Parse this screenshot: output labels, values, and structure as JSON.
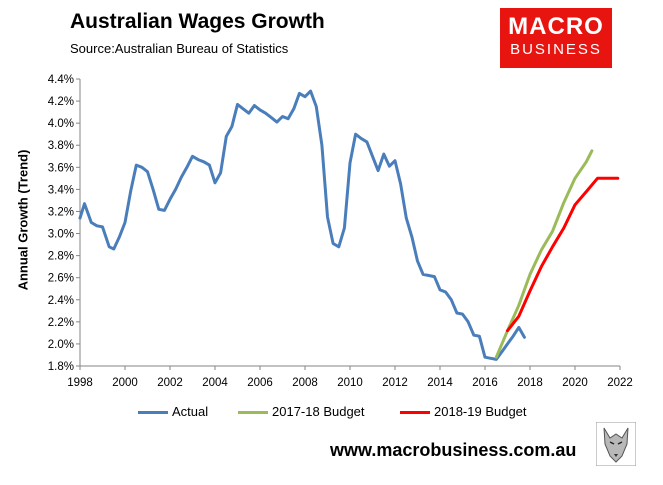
{
  "header": {
    "title": "Australian Wages Growth",
    "source": "Source:Australian Bureau of Statistics"
  },
  "logo": {
    "line1": "MACRO",
    "line2": "BUSINESS"
  },
  "footer": {
    "url": "www.macrobusiness.com.au"
  },
  "colors": {
    "actual": "#4a7ebb",
    "budget_2017": "#9bbb59",
    "budget_2018": "#ff0000",
    "logo_bg": "#e8140f"
  },
  "chart_data": {
    "type": "line",
    "ylabel": "Annual Growth (Trend)",
    "xlim": [
      1998,
      2022
    ],
    "ylim": [
      1.8,
      4.4
    ],
    "x_ticks": [
      1998,
      2000,
      2002,
      2004,
      2006,
      2008,
      2010,
      2012,
      2014,
      2016,
      2018,
      2020,
      2022
    ],
    "y_ticks": [
      1.8,
      2.0,
      2.2,
      2.4,
      2.6,
      2.8,
      3.0,
      3.2,
      3.4,
      3.6,
      3.8,
      4.0,
      4.2,
      4.4
    ],
    "y_tick_labels": [
      "1.8%",
      "2.0%",
      "2.2%",
      "2.4%",
      "2.6%",
      "2.8%",
      "3.0%",
      "3.2%",
      "3.4%",
      "3.6%",
      "3.8%",
      "4.0%",
      "4.2%",
      "4.4%"
    ],
    "grid": false,
    "legend_position": "bottom",
    "series": [
      {
        "name": "Actual",
        "color": "#4a7ebb",
        "x": [
          1998.0,
          1998.2,
          1998.5,
          1998.75,
          1999.0,
          1999.3,
          1999.5,
          1999.75,
          2000.0,
          2000.25,
          2000.5,
          2000.75,
          2001.0,
          2001.25,
          2001.5,
          2001.75,
          2002.0,
          2002.25,
          2002.5,
          2002.75,
          2003.0,
          2003.25,
          2003.5,
          2003.75,
          2004.0,
          2004.25,
          2004.5,
          2004.75,
          2005.0,
          2005.25,
          2005.5,
          2005.75,
          2006.0,
          2006.25,
          2006.5,
          2006.75,
          2007.0,
          2007.25,
          2007.5,
          2007.75,
          2008.0,
          2008.25,
          2008.5,
          2008.75,
          2009.0,
          2009.25,
          2009.5,
          2009.75,
          2010.0,
          2010.25,
          2010.5,
          2010.75,
          2011.0,
          2011.25,
          2011.5,
          2011.75,
          2012.0,
          2012.25,
          2012.5,
          2012.75,
          2013.0,
          2013.25,
          2013.5,
          2013.75,
          2014.0,
          2014.25,
          2014.5,
          2014.75,
          2015.0,
          2015.25,
          2015.5,
          2015.75,
          2016.0,
          2016.25,
          2016.5,
          2016.75,
          2017.0,
          2017.25,
          2017.5,
          2017.75
        ],
        "values": [
          3.14,
          3.27,
          3.1,
          3.07,
          3.06,
          2.88,
          2.86,
          2.97,
          3.1,
          3.38,
          3.62,
          3.6,
          3.56,
          3.4,
          3.22,
          3.21,
          3.31,
          3.4,
          3.51,
          3.6,
          3.7,
          3.67,
          3.65,
          3.62,
          3.46,
          3.55,
          3.88,
          3.97,
          4.17,
          4.13,
          4.09,
          4.16,
          4.12,
          4.09,
          4.05,
          4.01,
          4.06,
          4.04,
          4.13,
          4.27,
          4.24,
          4.29,
          4.15,
          3.8,
          3.15,
          2.91,
          2.88,
          3.05,
          3.64,
          3.9,
          3.86,
          3.83,
          3.7,
          3.57,
          3.72,
          3.61,
          3.66,
          3.45,
          3.14,
          2.97,
          2.75,
          2.63,
          2.62,
          2.61,
          2.49,
          2.47,
          2.4,
          2.28,
          2.27,
          2.2,
          2.08,
          2.07,
          1.88,
          1.87,
          1.86,
          1.93,
          2.0,
          2.07,
          2.15,
          2.06
        ]
      },
      {
        "name": "2017-18 Budget",
        "color": "#9bbb59",
        "x": [
          2016.5,
          2017.0,
          2017.5,
          2018.0,
          2018.5,
          2019.0,
          2019.5,
          2020.0,
          2020.5,
          2020.75
        ],
        "values": [
          1.88,
          2.12,
          2.35,
          2.63,
          2.85,
          3.02,
          3.28,
          3.5,
          3.65,
          3.75
        ]
      },
      {
        "name": "2018-19 Budget",
        "color": "#ff0000",
        "x": [
          2017.0,
          2017.5,
          2018.0,
          2018.5,
          2019.0,
          2019.5,
          2020.0,
          2020.5,
          2021.0,
          2021.5,
          2021.9
        ],
        "values": [
          2.12,
          2.25,
          2.48,
          2.7,
          2.88,
          3.05,
          3.26,
          3.38,
          3.5,
          3.5,
          3.5
        ]
      }
    ]
  }
}
